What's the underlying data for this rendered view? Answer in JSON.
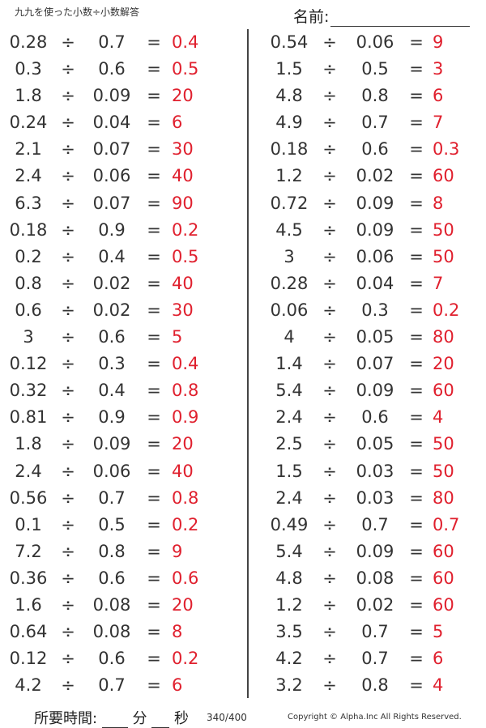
{
  "header": {
    "title": "九九を使った小数÷小数解答",
    "name_label": "名前:"
  },
  "operators": {
    "divide": "÷",
    "equals": "="
  },
  "left_problems": [
    {
      "a": "0.28",
      "b": "0.7",
      "ans": "0.4"
    },
    {
      "a": "0.3",
      "b": "0.6",
      "ans": "0.5"
    },
    {
      "a": "1.8",
      "b": "0.09",
      "ans": "20"
    },
    {
      "a": "0.24",
      "b": "0.04",
      "ans": "6"
    },
    {
      "a": "2.1",
      "b": "0.07",
      "ans": "30"
    },
    {
      "a": "2.4",
      "b": "0.06",
      "ans": "40"
    },
    {
      "a": "6.3",
      "b": "0.07",
      "ans": "90"
    },
    {
      "a": "0.18",
      "b": "0.9",
      "ans": "0.2"
    },
    {
      "a": "0.2",
      "b": "0.4",
      "ans": "0.5"
    },
    {
      "a": "0.8",
      "b": "0.02",
      "ans": "40"
    },
    {
      "a": "0.6",
      "b": "0.02",
      "ans": "30"
    },
    {
      "a": "3",
      "b": "0.6",
      "ans": "5"
    },
    {
      "a": "0.12",
      "b": "0.3",
      "ans": "0.4"
    },
    {
      "a": "0.32",
      "b": "0.4",
      "ans": "0.8"
    },
    {
      "a": "0.81",
      "b": "0.9",
      "ans": "0.9"
    },
    {
      "a": "1.8",
      "b": "0.09",
      "ans": "20"
    },
    {
      "a": "2.4",
      "b": "0.06",
      "ans": "40"
    },
    {
      "a": "0.56",
      "b": "0.7",
      "ans": "0.8"
    },
    {
      "a": "0.1",
      "b": "0.5",
      "ans": "0.2"
    },
    {
      "a": "7.2",
      "b": "0.8",
      "ans": "9"
    },
    {
      "a": "0.36",
      "b": "0.6",
      "ans": "0.6"
    },
    {
      "a": "1.6",
      "b": "0.08",
      "ans": "20"
    },
    {
      "a": "0.64",
      "b": "0.08",
      "ans": "8"
    },
    {
      "a": "0.12",
      "b": "0.6",
      "ans": "0.2"
    },
    {
      "a": "4.2",
      "b": "0.7",
      "ans": "6"
    }
  ],
  "right_problems": [
    {
      "a": "0.54",
      "b": "0.06",
      "ans": "9"
    },
    {
      "a": "1.5",
      "b": "0.5",
      "ans": "3"
    },
    {
      "a": "4.8",
      "b": "0.8",
      "ans": "6"
    },
    {
      "a": "4.9",
      "b": "0.7",
      "ans": "7"
    },
    {
      "a": "0.18",
      "b": "0.6",
      "ans": "0.3"
    },
    {
      "a": "1.2",
      "b": "0.02",
      "ans": "60"
    },
    {
      "a": "0.72",
      "b": "0.09",
      "ans": "8"
    },
    {
      "a": "4.5",
      "b": "0.09",
      "ans": "50"
    },
    {
      "a": "3",
      "b": "0.06",
      "ans": "50"
    },
    {
      "a": "0.28",
      "b": "0.04",
      "ans": "7"
    },
    {
      "a": "0.06",
      "b": "0.3",
      "ans": "0.2"
    },
    {
      "a": "4",
      "b": "0.05",
      "ans": "80"
    },
    {
      "a": "1.4",
      "b": "0.07",
      "ans": "20"
    },
    {
      "a": "5.4",
      "b": "0.09",
      "ans": "60"
    },
    {
      "a": "2.4",
      "b": "0.6",
      "ans": "4"
    },
    {
      "a": "2.5",
      "b": "0.05",
      "ans": "50"
    },
    {
      "a": "1.5",
      "b": "0.03",
      "ans": "50"
    },
    {
      "a": "2.4",
      "b": "0.03",
      "ans": "80"
    },
    {
      "a": "0.49",
      "b": "0.7",
      "ans": "0.7"
    },
    {
      "a": "5.4",
      "b": "0.09",
      "ans": "60"
    },
    {
      "a": "4.8",
      "b": "0.08",
      "ans": "60"
    },
    {
      "a": "1.2",
      "b": "0.02",
      "ans": "60"
    },
    {
      "a": "3.5",
      "b": "0.7",
      "ans": "5"
    },
    {
      "a": "4.2",
      "b": "0.7",
      "ans": "6"
    },
    {
      "a": "3.2",
      "b": "0.8",
      "ans": "4"
    }
  ],
  "footer": {
    "time_label": "所要時間:",
    "minutes_label": "分",
    "seconds_label": "秒",
    "page": "340/400",
    "copyright": "Copyright © Alpha.Inc All Rights Reserved."
  },
  "colors": {
    "answer": "#e0202e",
    "text": "#333333"
  }
}
